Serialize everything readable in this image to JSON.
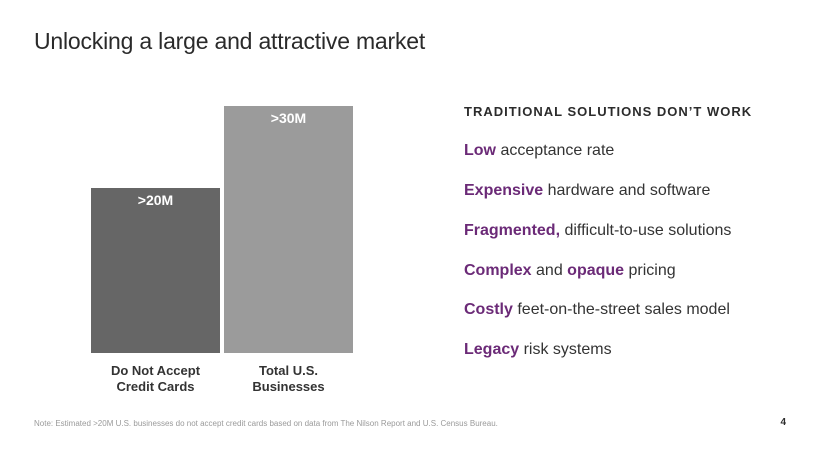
{
  "slide": {
    "title": "Unlocking a large and attractive market",
    "note": "Note: Estimated >20M U.S. businesses do not accept credit cards based on data from The Nilson Report and U.S. Census Bureau.",
    "page_number": "4"
  },
  "chart_data": {
    "type": "bar",
    "title": "",
    "xlabel": "",
    "ylabel": "",
    "categories": [
      "Do Not Accept Credit Cards",
      "Total U.S. Businesses"
    ],
    "category_lines": [
      [
        "Do Not Accept",
        "Credit Cards"
      ],
      [
        "Total U.S.",
        "Businesses"
      ]
    ],
    "values": [
      20,
      30
    ],
    "unit": "M",
    "data_labels": [
      ">20M",
      ">30M"
    ],
    "colors": [
      "#666666",
      "#9b9b9b"
    ],
    "ylim": [
      0,
      30
    ]
  },
  "panel": {
    "heading": "TRADITIONAL SOLUTIONS DON’T WORK",
    "items": [
      {
        "parts": [
          {
            "t": "Low",
            "h": true
          },
          {
            "t": " acceptance rate",
            "h": false
          }
        ]
      },
      {
        "parts": [
          {
            "t": "Expensive",
            "h": true
          },
          {
            "t": " hardware and software",
            "h": false
          }
        ]
      },
      {
        "parts": [
          {
            "t": "Fragmented,",
            "h": true
          },
          {
            "t": " difficult-to-use solutions",
            "h": false
          }
        ]
      },
      {
        "parts": [
          {
            "t": "Complex",
            "h": true
          },
          {
            "t": " and ",
            "h": false
          },
          {
            "t": "opaque",
            "h": true
          },
          {
            "t": " pricing",
            "h": false
          }
        ]
      },
      {
        "parts": [
          {
            "t": "Costly",
            "h": true
          },
          {
            "t": " feet-on-the-street sales model",
            "h": false
          }
        ]
      },
      {
        "parts": [
          {
            "t": "Legacy",
            "h": true
          },
          {
            "t": " risk systems",
            "h": false
          }
        ]
      }
    ]
  }
}
